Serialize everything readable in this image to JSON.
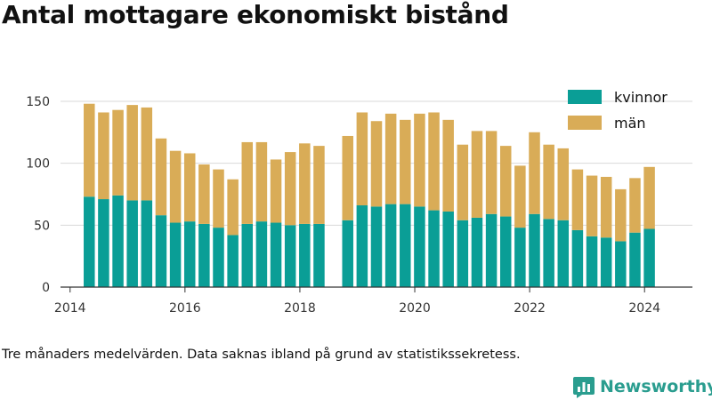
{
  "title": "Antal mottagare ekonomiskt bistånd",
  "caption": "Tre månaders medelvärden. Data saknas ibland på grund av statistikssekretess.",
  "brand": {
    "name": "Newsworthy",
    "icon": "newsworthy-logo-icon"
  },
  "colors": {
    "kvinnor": "#0a9e96",
    "man": "#d9ac57",
    "grid": "#d9d9d9",
    "axis": "#333333"
  },
  "chart_data": {
    "type": "bar",
    "stacked": true,
    "x_ticks": [
      "2014",
      "2016",
      "2018",
      "2020",
      "2022",
      "2024"
    ],
    "x_range": [
      "2013-11",
      "2024-11"
    ],
    "y_ticks": [
      "0",
      "50",
      "100",
      "150"
    ],
    "ylim": [
      0,
      160
    ],
    "grid": true,
    "legend_position": "top-right",
    "categories": [
      "2014-05",
      "2014-08",
      "2014-11",
      "2015-02",
      "2015-05",
      "2015-08",
      "2015-11",
      "2016-02",
      "2016-05",
      "2016-08",
      "2016-11",
      "2017-02",
      "2017-05",
      "2017-08",
      "2017-11",
      "2018-02",
      "2018-05",
      "2018-11",
      "2019-02",
      "2019-05",
      "2019-08",
      "2019-11",
      "2020-02",
      "2020-05",
      "2020-08",
      "2020-11",
      "2021-02",
      "2021-05",
      "2021-08",
      "2021-11",
      "2022-02",
      "2022-05",
      "2022-08",
      "2022-11",
      "2023-02",
      "2023-05",
      "2023-08",
      "2023-11",
      "2024-02"
    ],
    "series": [
      {
        "name": "kvinnor",
        "values": [
          73,
          71,
          74,
          70,
          70,
          58,
          52,
          53,
          51,
          48,
          42,
          51,
          53,
          52,
          50,
          51,
          51,
          54,
          66,
          65,
          67,
          67,
          65,
          62,
          61,
          54,
          56,
          59,
          57,
          48,
          59,
          55,
          54,
          46,
          41,
          40,
          37,
          44,
          47
        ]
      },
      {
        "name": "män",
        "values": [
          75,
          70,
          69,
          77,
          75,
          62,
          58,
          55,
          48,
          47,
          45,
          66,
          64,
          51,
          59,
          65,
          63,
          68,
          75,
          69,
          73,
          68,
          75,
          79,
          74,
          61,
          70,
          67,
          57,
          50,
          66,
          60,
          58,
          49,
          49,
          49,
          42,
          44,
          50
        ]
      }
    ]
  }
}
